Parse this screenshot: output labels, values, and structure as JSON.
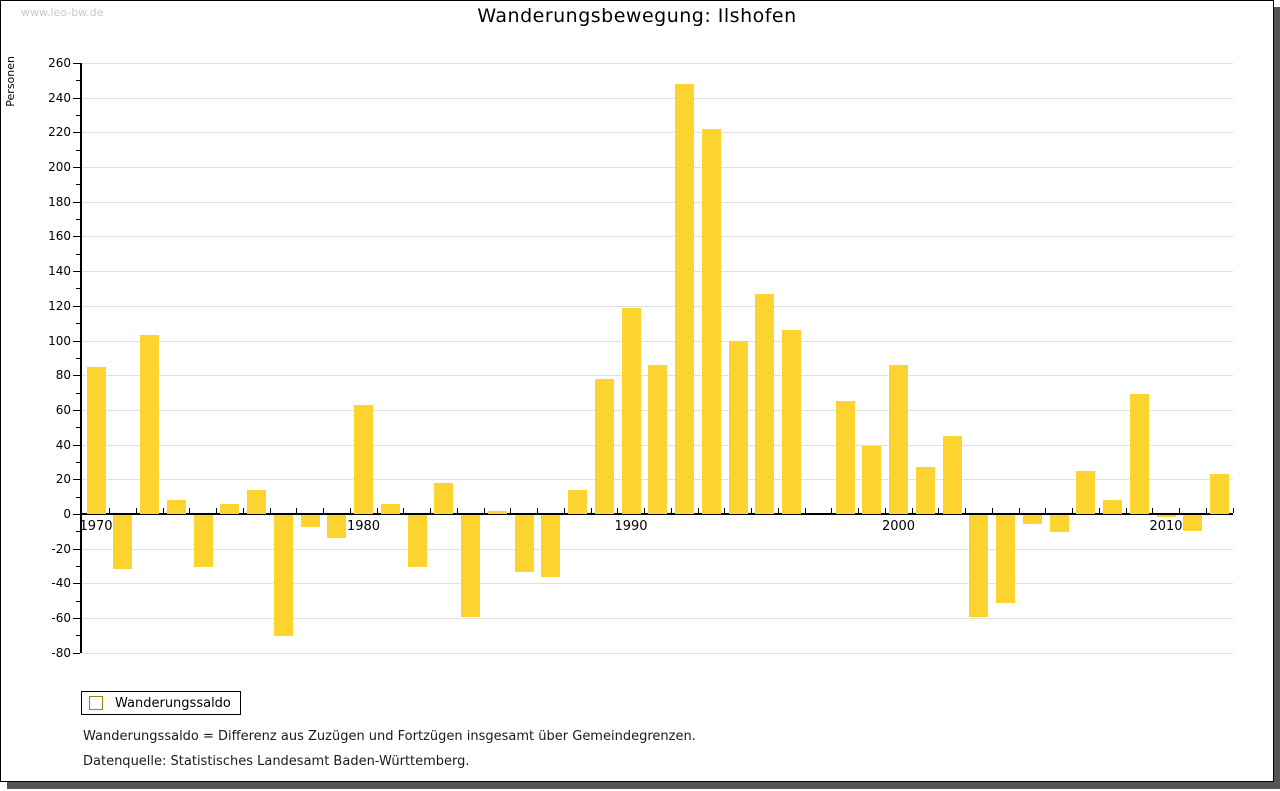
{
  "page": {
    "watermark": "www.leo-bw.de",
    "title": "Wanderungsbewegung: Ilshofen"
  },
  "legend": {
    "label": "Wanderungssaldo"
  },
  "footnotes": {
    "definition": "Wanderungssaldo = Differenz aus Zuzügen und Fortzügen insgesamt über Gemeindegrenzen.",
    "source": "Datenquelle: Statistisches Landesamt Baden-Württemberg."
  },
  "colors": {
    "bar": "#fcd32f",
    "bar_border": "#a08000",
    "grid": "#e0e0e0",
    "axis": "#000000",
    "watermark": "#c9c9c9",
    "frame_shadow": "#555555"
  },
  "chart_data": {
    "type": "bar",
    "title": "Wanderungsbewegung: Ilshofen",
    "xlabel": "",
    "ylabel": "Personen",
    "series_name": "Wanderungssaldo",
    "ylim": [
      -80,
      260
    ],
    "ytick_step": 20,
    "ytick_minor_step": 10,
    "grid": "horizontal",
    "legend_position": "bottom-left",
    "xtick_labeled_years": [
      1970,
      1980,
      1990,
      2000,
      2010
    ],
    "x": [
      1970,
      1971,
      1972,
      1973,
      1974,
      1975,
      1976,
      1977,
      1978,
      1979,
      1980,
      1981,
      1982,
      1983,
      1984,
      1985,
      1986,
      1987,
      1988,
      1989,
      1990,
      1991,
      1992,
      1993,
      1994,
      1995,
      1996,
      1997,
      1998,
      1999,
      2000,
      2001,
      2002,
      2003,
      2004,
      2005,
      2006,
      2007,
      2008,
      2009,
      2010,
      2011,
      2012
    ],
    "values": [
      85,
      -31,
      103,
      8,
      -30,
      6,
      14,
      -70,
      -7,
      -13,
      63,
      6,
      -30,
      18,
      -59,
      2,
      -33,
      -36,
      14,
      78,
      119,
      86,
      248,
      222,
      100,
      127,
      106,
      0,
      65,
      39,
      86,
      27,
      45,
      -59,
      -51,
      -5,
      -10,
      25,
      8,
      69,
      -1,
      -9,
      23
    ]
  }
}
